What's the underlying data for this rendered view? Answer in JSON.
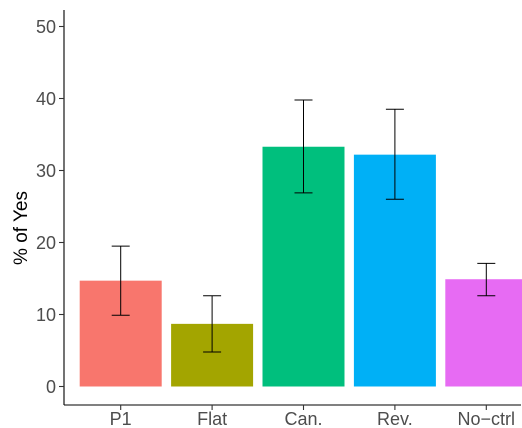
{
  "chart_data": {
    "type": "bar",
    "title": "",
    "xlabel": "",
    "ylabel": "% of Yes",
    "ylim": [
      0,
      52
    ],
    "yticks": [
      0,
      10,
      20,
      30,
      40,
      50
    ],
    "grid": false,
    "legend": "none",
    "categories": [
      "P1",
      "Flat",
      "Can.",
      "Rev.",
      "No−ctrl"
    ],
    "values": [
      14.7,
      8.7,
      33.3,
      32.2,
      14.9
    ],
    "error_low": [
      9.9,
      4.8,
      26.9,
      26.0,
      12.6
    ],
    "error_high": [
      19.5,
      12.6,
      39.8,
      38.5,
      17.1
    ],
    "colors": [
      "#F8766D",
      "#A3A500",
      "#00BF7D",
      "#00B0F6",
      "#E76BF3"
    ]
  }
}
